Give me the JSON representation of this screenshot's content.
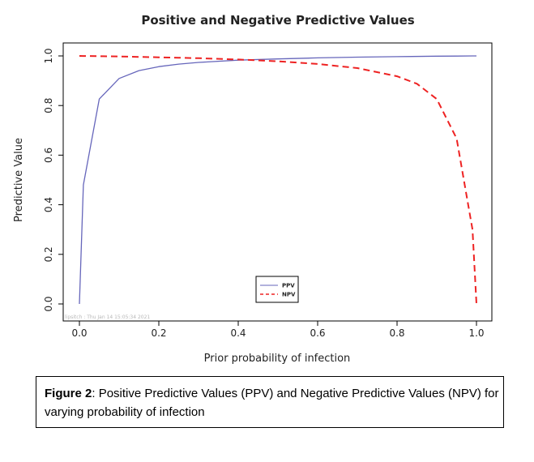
{
  "chart_data": {
    "type": "line",
    "title": "Positive and Negative Predictive Values",
    "xlabel": "Prior probability of infection",
    "ylabel": "Predictive Value",
    "xlim": [
      0,
      1
    ],
    "ylim": [
      0,
      1
    ],
    "xticks": [
      0.0,
      0.2,
      0.4,
      0.6,
      0.8,
      1.0
    ],
    "xtick_labels": [
      "0.0",
      "0.2",
      "0.4",
      "0.6",
      "0.8",
      "1.0"
    ],
    "yticks": [
      0.0,
      0.2,
      0.4,
      0.6,
      0.8,
      1.0
    ],
    "ytick_labels": [
      "0.0",
      "0.2",
      "0.4",
      "0.6",
      "0.8",
      "1.0"
    ],
    "legend_position": "bottom-center",
    "series": [
      {
        "name": "PPV",
        "color": "#6666bb",
        "style": "solid",
        "x": [
          0,
          0.01,
          0.05,
          0.1,
          0.15,
          0.2,
          0.25,
          0.3,
          0.4,
          0.5,
          0.6,
          0.7,
          0.8,
          0.9,
          0.95,
          0.99,
          1.0
        ],
        "values": [
          0,
          0.48,
          0.826,
          0.909,
          0.941,
          0.957,
          0.967,
          0.974,
          0.983,
          0.988,
          0.992,
          0.995,
          0.997,
          0.999,
          0.9995,
          0.9999,
          1.0
        ]
      },
      {
        "name": "NPV",
        "color": "#ee2222",
        "style": "dashed",
        "x": [
          0,
          0.01,
          0.05,
          0.1,
          0.15,
          0.2,
          0.25,
          0.3,
          0.4,
          0.5,
          0.6,
          0.7,
          0.8,
          0.85,
          0.9,
          0.95,
          0.99,
          1.0
        ],
        "values": [
          1.0,
          0.9998,
          0.9989,
          0.9976,
          0.9962,
          0.9946,
          0.9928,
          0.9908,
          0.9857,
          0.9783,
          0.9677,
          0.951,
          0.918,
          0.888,
          0.826,
          0.667,
          0.3,
          0
        ]
      }
    ],
    "annotations": [
      "lipsitch : Thu Jan 14 15:05:34 2021"
    ]
  },
  "colors": {
    "ppv": "#6666bb",
    "npv": "#ee2222",
    "axis": "#000000",
    "text": "#222222"
  },
  "caption": {
    "label": "Figure 2",
    "text": ": Positive Predictive Values (PPV) and Negative Predictive Values (NPV) for varying probability of infection"
  }
}
